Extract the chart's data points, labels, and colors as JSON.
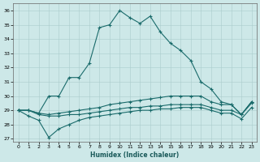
{
  "bg_color": "#cde8e8",
  "grid_color": "#aacccc",
  "line_color": "#1a6b6b",
  "xlabel": "Humidex (Indice chaleur)",
  "xlim": [
    -0.5,
    23.5
  ],
  "ylim": [
    26.8,
    36.5
  ],
  "xticks": [
    0,
    1,
    2,
    3,
    4,
    5,
    6,
    7,
    8,
    9,
    10,
    11,
    12,
    13,
    14,
    15,
    16,
    17,
    18,
    19,
    20,
    21,
    22,
    23
  ],
  "yticks": [
    27,
    28,
    29,
    30,
    31,
    32,
    33,
    34,
    35,
    36
  ],
  "curve1_x": [
    0,
    1,
    2,
    3,
    4,
    5,
    6,
    7,
    8,
    9,
    10,
    11,
    12,
    13,
    14,
    15,
    16,
    17,
    18,
    19,
    20,
    21,
    22,
    23
  ],
  "curve1_y": [
    29.0,
    29.0,
    28.8,
    30.0,
    30.0,
    31.3,
    31.3,
    32.3,
    34.8,
    35.0,
    36.0,
    35.5,
    35.1,
    35.6,
    34.5,
    33.7,
    33.2,
    32.5,
    31.0,
    30.5,
    29.6,
    29.4,
    28.7,
    29.6
  ],
  "curve2_x": [
    0,
    1,
    2,
    3,
    4,
    5,
    6,
    7,
    8,
    9,
    10,
    11,
    12,
    13,
    14,
    15,
    16,
    17,
    18,
    19,
    20,
    21,
    22,
    23
  ],
  "curve2_y": [
    29.0,
    29.0,
    28.8,
    28.7,
    28.8,
    28.9,
    29.0,
    29.1,
    29.2,
    29.4,
    29.5,
    29.6,
    29.7,
    29.8,
    29.9,
    30.0,
    30.0,
    30.0,
    30.0,
    29.6,
    29.4,
    29.4,
    28.7,
    29.6
  ],
  "curve3_x": [
    0,
    1,
    2,
    3,
    4,
    5,
    6,
    7,
    8,
    9,
    10,
    11,
    12,
    13,
    14,
    15,
    16,
    17,
    18,
    19,
    20,
    21,
    22,
    23
  ],
  "curve3_y": [
    29.0,
    29.0,
    28.7,
    28.6,
    28.6,
    28.7,
    28.7,
    28.8,
    28.9,
    29.0,
    29.1,
    29.2,
    29.2,
    29.3,
    29.3,
    29.4,
    29.4,
    29.4,
    29.4,
    29.2,
    29.0,
    29.0,
    28.7,
    29.5
  ],
  "curve4_x": [
    0,
    1,
    2,
    3,
    4,
    5,
    6,
    7,
    8,
    9,
    10,
    11,
    12,
    13,
    14,
    15,
    16,
    17,
    18,
    19,
    20,
    21,
    22,
    23
  ],
  "curve4_y": [
    29.0,
    28.6,
    28.3,
    27.1,
    27.7,
    28.0,
    28.3,
    28.5,
    28.6,
    28.7,
    28.8,
    28.9,
    29.0,
    29.0,
    29.1,
    29.1,
    29.2,
    29.2,
    29.2,
    29.0,
    28.8,
    28.8,
    28.4,
    29.2
  ]
}
